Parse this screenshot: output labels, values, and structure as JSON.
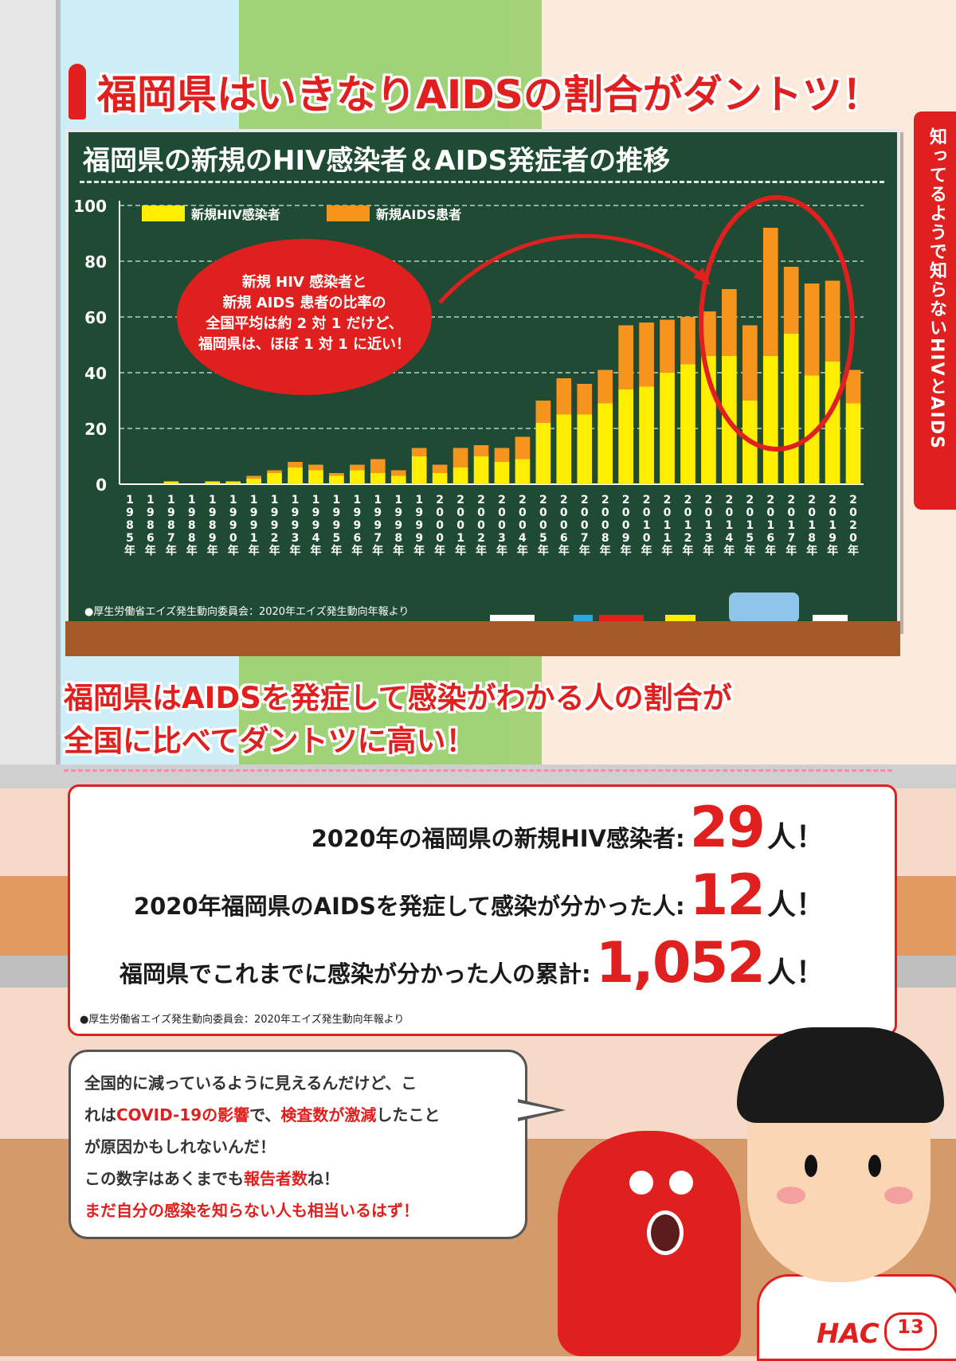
{
  "headline": "福岡県はいきなりAIDSの割合がダントツ！",
  "side_tab": "知ってるようで知らないHIVとAIDS",
  "board": {
    "title": "福岡県の新規のHIV感染者＆AIDS発症者の推移",
    "source": "●厚生労働省エイズ発生動向委員会：2020年エイズ発生動向年報より",
    "callout": [
      "新規 HIV 感染者と",
      "新規 AIDS 患者の比率の",
      "全国平均は約 2 対 1 だけど、",
      "福岡県は、ほぼ 1 対 1 に近い！"
    ]
  },
  "chart_data": {
    "type": "bar",
    "stacked": true,
    "categories": [
      "1985年",
      "1986年",
      "1987年",
      "1988年",
      "1989年",
      "1990年",
      "1991年",
      "1992年",
      "1993年",
      "1994年",
      "1995年",
      "1996年",
      "1997年",
      "1998年",
      "1999年",
      "2000年",
      "2001年",
      "2002年",
      "2003年",
      "2004年",
      "2005年",
      "2006年",
      "2007年",
      "2008年",
      "2009年",
      "2010年",
      "2011年",
      "2012年",
      "2013年",
      "2014年",
      "2015年",
      "2016年",
      "2017年",
      "2018年",
      "2019年",
      "2020年"
    ],
    "series": [
      {
        "name": "新規HIV感染者",
        "color": "#ffee00",
        "values": [
          0,
          0,
          1,
          0,
          1,
          1,
          2,
          4,
          6,
          5,
          3,
          5,
          4,
          3,
          10,
          4,
          6,
          10,
          8,
          9,
          22,
          25,
          25,
          29,
          34,
          35,
          40,
          43,
          46,
          46,
          30,
          46,
          54,
          39,
          44,
          29
        ]
      },
      {
        "name": "新規AIDS患者",
        "color": "#f7941d",
        "values": [
          0,
          0,
          0,
          0,
          0,
          0,
          1,
          1,
          2,
          2,
          1,
          2,
          5,
          2,
          3,
          3,
          7,
          4,
          5,
          8,
          8,
          13,
          11,
          12,
          23,
          23,
          19,
          17,
          16,
          24,
          27,
          46,
          24,
          33,
          29,
          12
        ]
      }
    ],
    "ylim": [
      0,
      100
    ],
    "yticks": [
      0,
      20,
      40,
      60,
      80,
      100
    ],
    "grid": true,
    "legend_position": "top-left"
  },
  "subhead": [
    "福岡県はAIDSを発症して感染がわかる人の割合が",
    "全国に比べてダントツに高い！"
  ],
  "stats": [
    {
      "label": "2020年の福岡県の新規HIV感染者:",
      "value": "29",
      "unit": "人！"
    },
    {
      "label": "2020年福岡県のAIDSを発症して感染が分かった人:",
      "value": "12",
      "unit": "人！"
    },
    {
      "label": "福岡県でこれまでに感染が分かった人の累計:",
      "value": "1,052",
      "unit": "人！"
    }
  ],
  "stats_source": "●厚生労働省エイズ発生動向委員会：2020年エイズ発生動向年報より",
  "bubble": {
    "l1": "全国的に減っているように見えるんだけど、こ",
    "l2a": "れは",
    "l2b": "COVID-19の影響",
    "l2c": "で、",
    "l2d": "検査数が激減",
    "l2e": "したこと",
    "l3": "が原因かもしれないんだ！",
    "l4a": "この数字はあくまでも",
    "l4b": "報告者数",
    "l4c": "ね！",
    "l5": "まだ自分の感染を知らない人も相当いるはず！"
  },
  "logo": "HAC",
  "page_number": "13"
}
